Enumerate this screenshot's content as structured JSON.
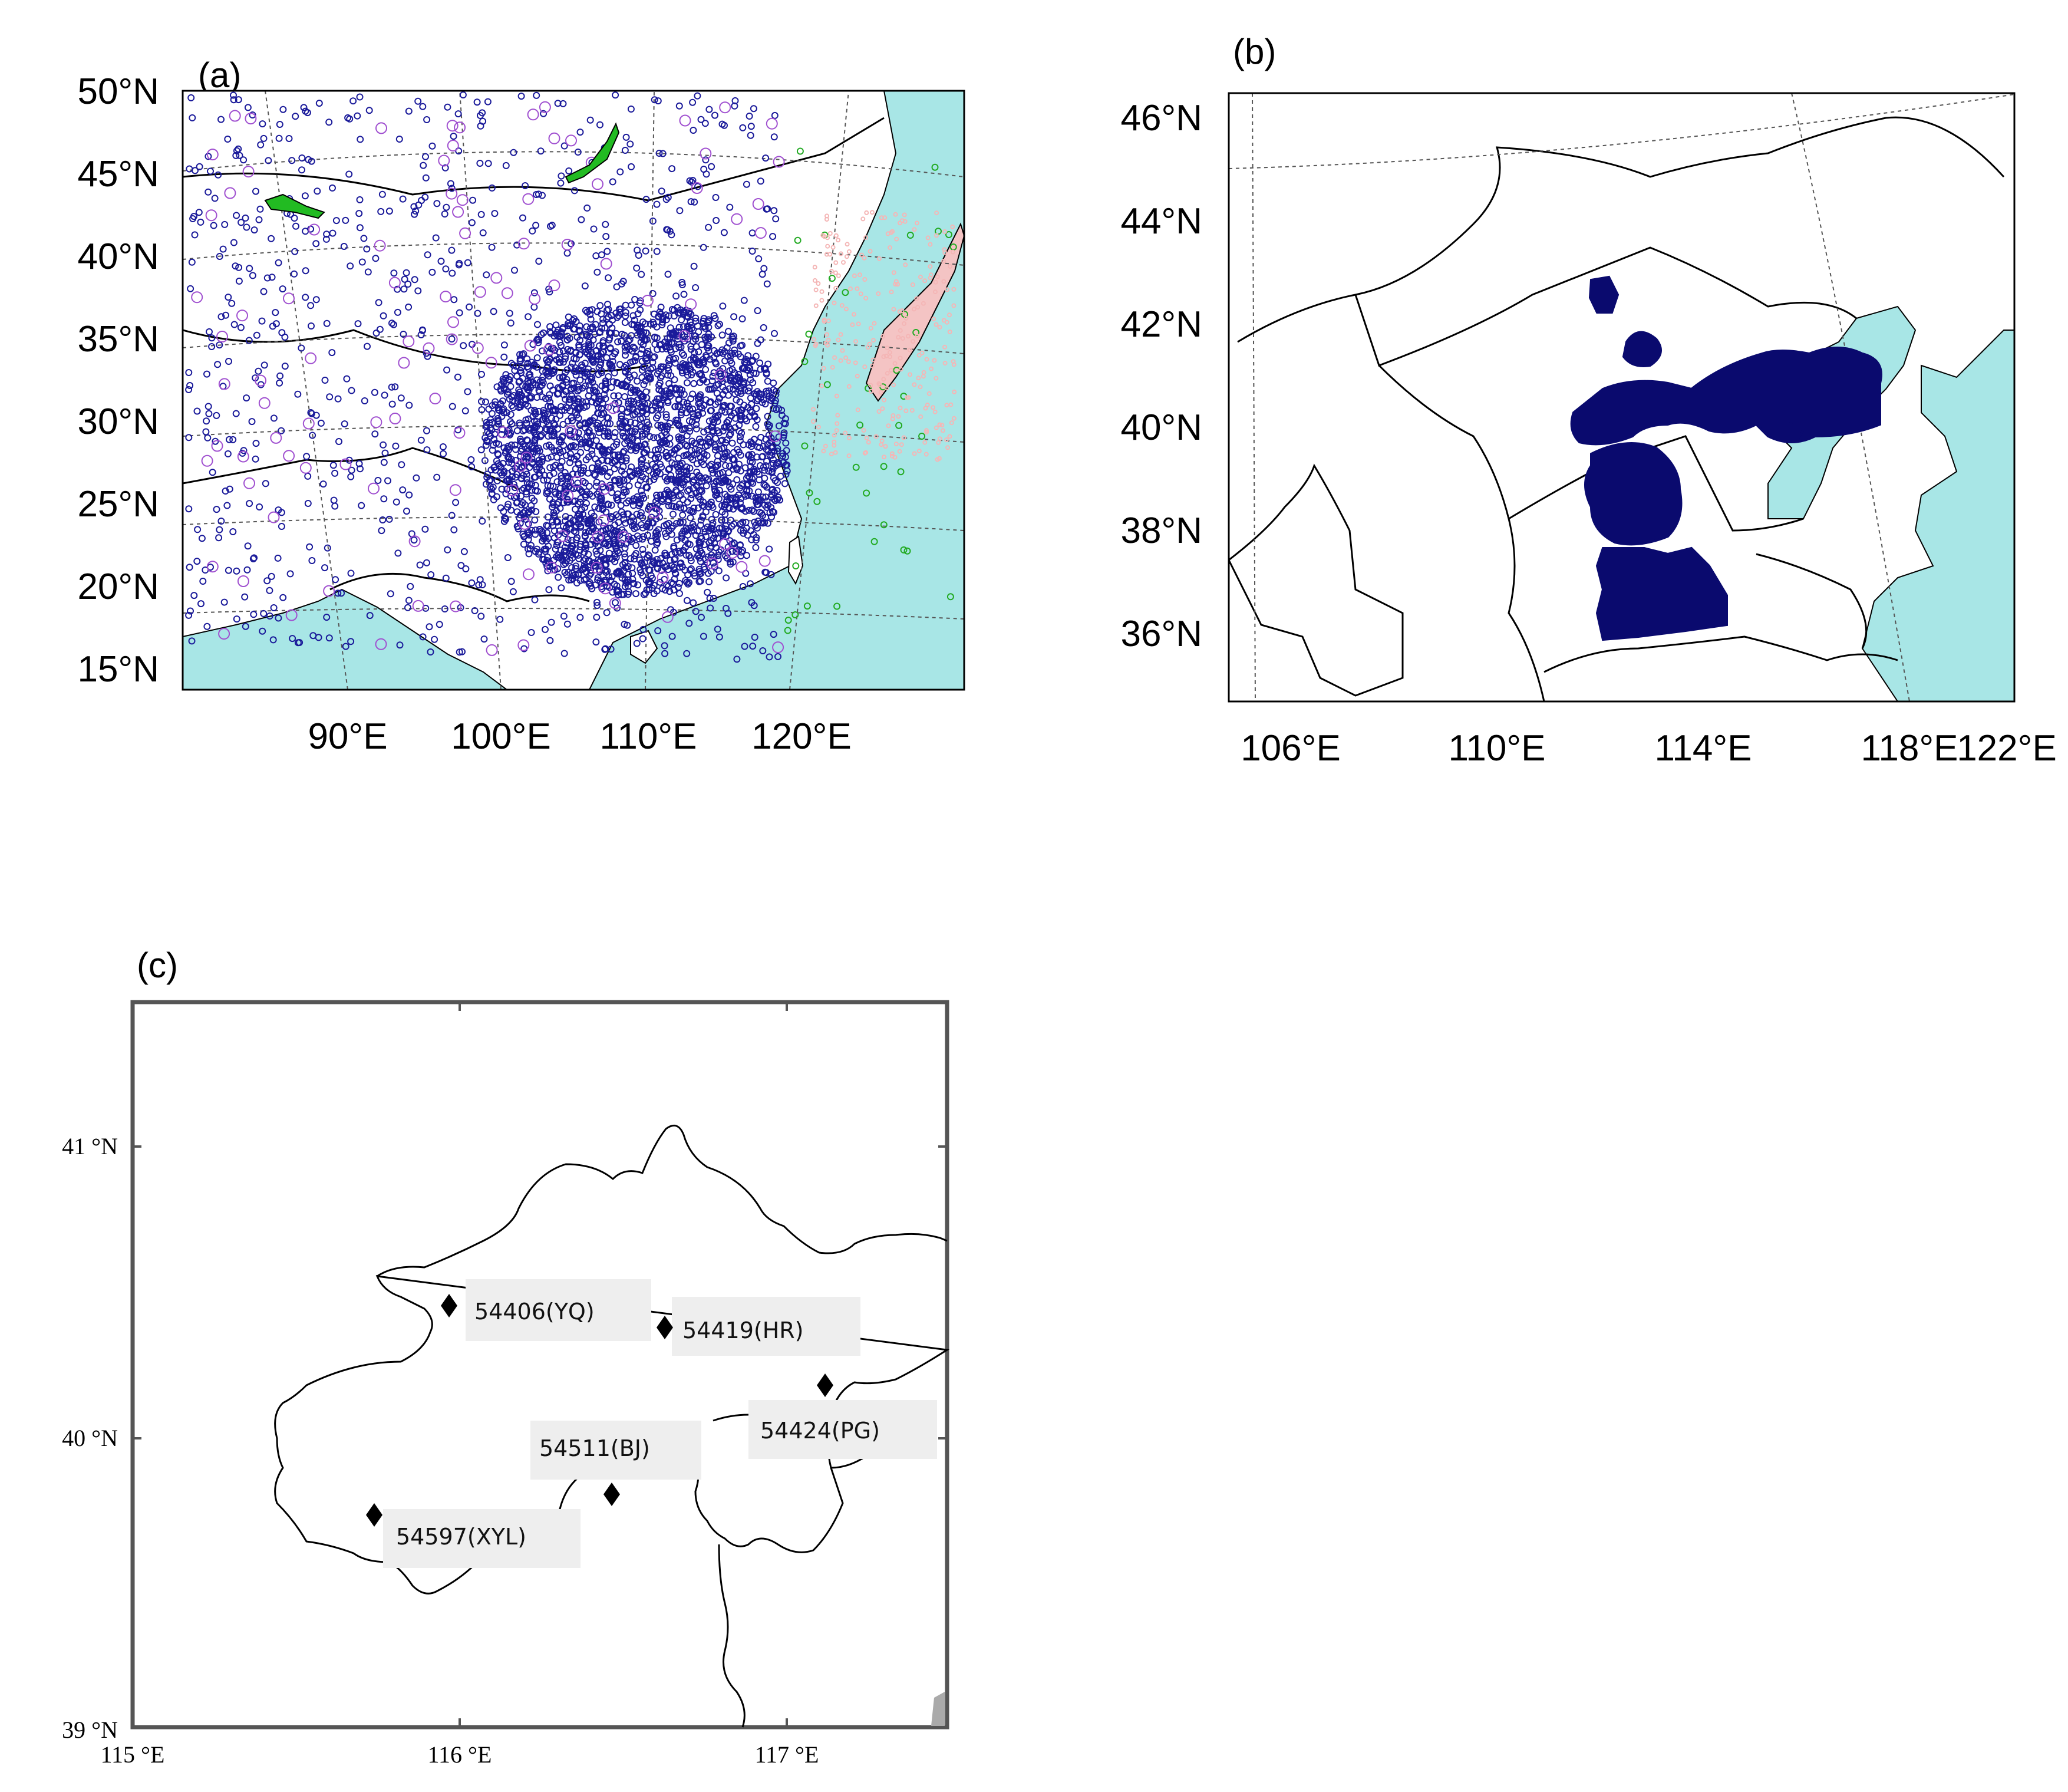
{
  "panels": {
    "a": {
      "label": "(a)",
      "lat_ticks": [
        "50°N",
        "45°N",
        "40°N",
        "35°N",
        "30°N",
        "25°N",
        "20°N",
        "15°N"
      ],
      "lon_ticks": [
        "90°E",
        "100°E",
        "110°E",
        "120°E"
      ],
      "colors": {
        "ocean": "#a8e6e6",
        "station_blue": "#1a1a9a",
        "station_purple": "#a050d0",
        "station_green": "#22aa22",
        "station_pink": "#f4b6b6"
      }
    },
    "b": {
      "label": "(b)",
      "lat_ticks": [
        "46°N",
        "44°N",
        "42°N",
        "40°N",
        "38°N",
        "36°N"
      ],
      "lon_ticks": [
        "106°E",
        "110°E",
        "114°E",
        "118°E",
        "122°E"
      ],
      "colors": {
        "ocean": "#a8e6e6",
        "domain_fill": "#0a0a6e"
      }
    },
    "c": {
      "label": "(c)",
      "lat_ticks": [
        "41 °N",
        "40 °N",
        "39 °N"
      ],
      "lon_ticks": [
        "115 °E",
        "116 °E",
        "117 °E"
      ],
      "stations": [
        {
          "id": "54406",
          "label": "54406(YQ)"
        },
        {
          "id": "54419",
          "label": "54419(HR)"
        },
        {
          "id": "54424",
          "label": "54424(PG)"
        },
        {
          "id": "54511",
          "label": "54511(BJ)"
        },
        {
          "id": "54597",
          "label": "54597(XYL)"
        }
      ]
    }
  }
}
